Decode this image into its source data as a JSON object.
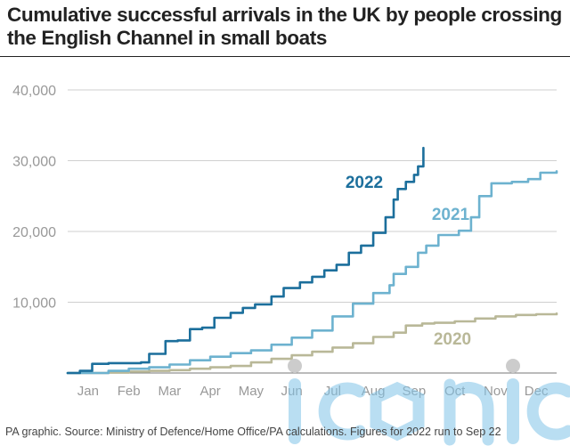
{
  "title": "Cumulative successful arrivals in the UK by people crossing the English Channel in small boats",
  "source": "PA graphic. Source: Ministry of Defence/Home Office/PA calculations. Figures for 2022 run to Sep 22",
  "watermark": "iconic",
  "colors": {
    "2022": "#1c6f9c",
    "2021": "#6db2cf",
    "2020": "#b9b898",
    "grid": "#cfcfcf",
    "axis_text": "#999999"
  },
  "chart_data": {
    "type": "line",
    "title": "Cumulative successful arrivals in the UK by people crossing the English Channel in small boats",
    "xlabel": "",
    "ylabel": "",
    "months": [
      "Jan",
      "Feb",
      "Mar",
      "Apr",
      "May",
      "Jun",
      "Jul",
      "Aug",
      "Sep",
      "Oct",
      "Nov",
      "Dec"
    ],
    "xlim": [
      0,
      12
    ],
    "ylim": [
      0,
      40000
    ],
    "yticks": [
      10000,
      20000,
      30000,
      40000
    ],
    "ytick_labels": [
      "10,000",
      "20,000",
      "30,000",
      "40,000"
    ],
    "grid": "horizontal",
    "legend": "inline labels",
    "series": [
      {
        "name": "2020",
        "points": [
          [
            0,
            0
          ],
          [
            0.5,
            0
          ],
          [
            1.0,
            50
          ],
          [
            1.5,
            200
          ],
          [
            2.0,
            300
          ],
          [
            2.5,
            400
          ],
          [
            3.0,
            600
          ],
          [
            3.5,
            800
          ],
          [
            4.0,
            1000
          ],
          [
            4.5,
            1500
          ],
          [
            5.0,
            2000
          ],
          [
            5.5,
            2500
          ],
          [
            6.0,
            3000
          ],
          [
            6.5,
            3600
          ],
          [
            7.0,
            4200
          ],
          [
            7.5,
            5100
          ],
          [
            8.0,
            5700
          ],
          [
            8.3,
            6700
          ],
          [
            8.7,
            7000
          ],
          [
            9.0,
            7100
          ],
          [
            9.5,
            7300
          ],
          [
            10.0,
            7700
          ],
          [
            10.5,
            8000
          ],
          [
            11.0,
            8200
          ],
          [
            11.5,
            8300
          ],
          [
            12.0,
            8400
          ]
        ]
      },
      {
        "name": "2021",
        "points": [
          [
            0,
            0
          ],
          [
            0.5,
            0
          ],
          [
            1.0,
            300
          ],
          [
            1.5,
            600
          ],
          [
            2.0,
            800
          ],
          [
            2.5,
            1200
          ],
          [
            3.0,
            1800
          ],
          [
            3.5,
            2300
          ],
          [
            4.0,
            2800
          ],
          [
            4.5,
            3200
          ],
          [
            5.0,
            4000
          ],
          [
            5.5,
            5000
          ],
          [
            6.0,
            6000
          ],
          [
            6.5,
            8000
          ],
          [
            7.0,
            9800
          ],
          [
            7.5,
            11300
          ],
          [
            7.9,
            12400
          ],
          [
            8.0,
            14000
          ],
          [
            8.3,
            15000
          ],
          [
            8.6,
            17000
          ],
          [
            8.8,
            18000
          ],
          [
            9.1,
            19500
          ],
          [
            9.6,
            20100
          ],
          [
            9.9,
            22000
          ],
          [
            10.1,
            25000
          ],
          [
            10.4,
            26800
          ],
          [
            10.9,
            27000
          ],
          [
            11.3,
            27400
          ],
          [
            11.6,
            28300
          ],
          [
            12.0,
            28500
          ]
        ]
      },
      {
        "name": "2022",
        "points": [
          [
            0,
            0
          ],
          [
            0.3,
            300
          ],
          [
            0.6,
            1300
          ],
          [
            1.0,
            1400
          ],
          [
            1.5,
            1400
          ],
          [
            1.8,
            1500
          ],
          [
            2.0,
            2700
          ],
          [
            2.4,
            4500
          ],
          [
            2.7,
            4600
          ],
          [
            3.0,
            6200
          ],
          [
            3.3,
            6400
          ],
          [
            3.6,
            7800
          ],
          [
            4.0,
            8500
          ],
          [
            4.3,
            9200
          ],
          [
            4.6,
            9700
          ],
          [
            5.0,
            10800
          ],
          [
            5.3,
            12000
          ],
          [
            5.7,
            12800
          ],
          [
            6.0,
            13600
          ],
          [
            6.3,
            14500
          ],
          [
            6.6,
            15300
          ],
          [
            6.9,
            17000
          ],
          [
            7.2,
            18000
          ],
          [
            7.5,
            19800
          ],
          [
            7.8,
            22000
          ],
          [
            8.0,
            24500
          ],
          [
            8.1,
            26000
          ],
          [
            8.3,
            27000
          ],
          [
            8.5,
            28000
          ],
          [
            8.6,
            29200
          ],
          [
            8.73,
            31800
          ]
        ]
      }
    ]
  }
}
